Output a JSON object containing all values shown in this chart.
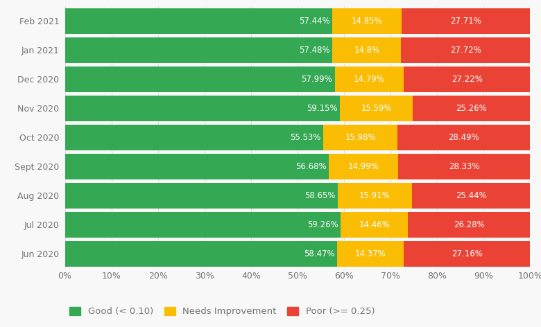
{
  "months": [
    "Feb 2021",
    "Jan 2021",
    "Dec 2020",
    "Nov 2020",
    "Oct 2020",
    "Sept 2020",
    "Aug 2020",
    "Jul 2020",
    "Jun 2020"
  ],
  "good": [
    57.44,
    57.48,
    57.99,
    59.15,
    55.53,
    56.68,
    58.65,
    59.26,
    58.47
  ],
  "needs_improvement": [
    14.85,
    14.8,
    14.79,
    15.59,
    15.98,
    14.99,
    15.91,
    14.46,
    14.37
  ],
  "poor": [
    27.71,
    27.72,
    27.22,
    25.26,
    28.49,
    28.33,
    25.44,
    26.28,
    27.16
  ],
  "good_color": "#34A853",
  "needs_color": "#FBBC04",
  "poor_color": "#EA4335",
  "bg_color": "#F8F8F8",
  "plot_bg_color": "#F8F8F8",
  "text_color": "#757575",
  "label_color": "#FFFFFF",
  "grid_color": "#E0E0E0",
  "legend_good": "Good (< 0.10)",
  "legend_needs": "Needs Improvement",
  "legend_poor": "Poor (>= 0.25)",
  "bar_height": 0.88,
  "figwidth": 7.8,
  "figheight": 4.72,
  "label_fontsize": 8.5,
  "tick_fontsize": 9
}
